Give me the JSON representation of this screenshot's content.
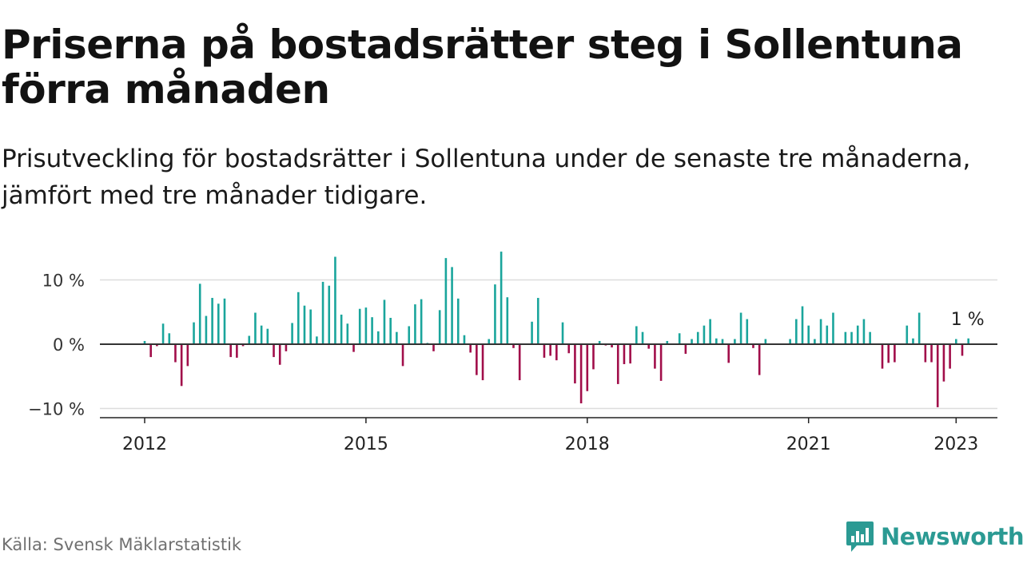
{
  "title": "Priserna på bostadsrätter steg i Sollentuna förra månaden",
  "subtitle": "Prisutveckling för bostadsrätter i Sollentuna under de senaste tre månaderna, jämfört med tre månader tidigare.",
  "source": "Källa: Svensk Mäklarstatistik",
  "brand": {
    "name": "Newsworthy",
    "icon": "newsworthy-logo-icon",
    "color": "#2b9a93"
  },
  "colors": {
    "positive": "#1aa59c",
    "negative": "#a10e4a",
    "zero_line": "#333333",
    "grid": "#dddddd"
  },
  "chart_data": {
    "type": "bar",
    "unit": "%",
    "ylim": [
      -12,
      15
    ],
    "grid": true,
    "y_ticks": [
      {
        "value": 10,
        "label": "10 %"
      },
      {
        "value": 0,
        "label": "0 %"
      },
      {
        "value": -10,
        "label": "−10 %"
      }
    ],
    "x_ticks": [
      "2012",
      "2015",
      "2018",
      "2021",
      "2023"
    ],
    "last_value_label": "1 %",
    "series": [
      {
        "start": "2012-01",
        "values": [
          0.5,
          -2.0,
          -0.3,
          3.2,
          1.7,
          -2.8,
          -6.5,
          -3.4,
          3.4,
          9.4,
          4.4,
          7.2,
          6.3,
          7.1,
          -2.0,
          -2.1,
          -0.3,
          1.3,
          4.9,
          2.9,
          2.4,
          -2.0,
          -3.2,
          -1.1,
          3.3,
          8.1,
          6.0,
          5.4,
          1.2,
          9.7,
          9.1,
          13.6,
          4.6,
          3.2,
          -1.2,
          5.5,
          5.7,
          4.2,
          2.0,
          6.9,
          4.1,
          1.9,
          -3.4,
          2.8,
          6.2,
          7.0,
          0.2,
          -1.1,
          5.3,
          13.4,
          12.0,
          7.1,
          1.4,
          -1.3,
          -4.8,
          -5.6,
          0.8,
          9.3,
          14.4,
          7.3,
          -0.6,
          -5.6,
          0.1,
          3.5,
          7.2,
          -2.1,
          -1.8,
          -2.5,
          3.4,
          -1.4,
          -6.1,
          -9.2,
          -7.3,
          -3.9,
          0.5,
          -0.2,
          -0.5,
          -6.2,
          -3.1,
          -3.0,
          2.8,
          1.9,
          -0.7,
          -3.8,
          -5.7,
          0.5,
          0.1,
          1.7,
          -1.5,
          0.8,
          1.9,
          2.9,
          3.9,
          0.9,
          0.8,
          -2.9,
          0.8,
          4.9,
          3.9,
          -0.6,
          -4.8,
          0.8,
          0.1,
          0.1,
          0.1,
          0.8,
          3.9,
          5.9,
          2.9,
          0.8,
          3.9,
          2.9,
          4.9,
          0.1,
          1.9,
          1.9,
          2.9,
          3.9,
          1.9,
          0.1,
          -3.8,
          -2.9,
          -2.8,
          0.1,
          2.9,
          0.9,
          4.9,
          -2.8,
          -2.8,
          -9.8,
          -5.8,
          -3.8,
          0.8,
          -1.8,
          0.9
        ]
      }
    ]
  }
}
